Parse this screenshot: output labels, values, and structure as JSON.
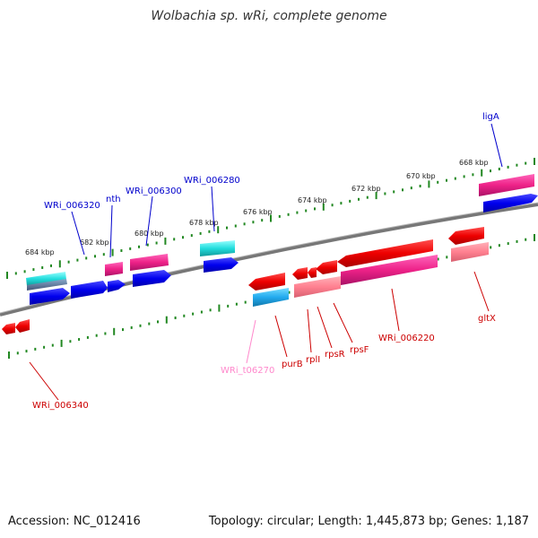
{
  "title": "Wolbachia sp. wRi, complete genome",
  "footer": {
    "accession": "Accession: NC_012416",
    "topology": "Topology: circular; Length: 1,445,873 bp; Genes: 1,187"
  },
  "scale_labels": [
    "668 kbp",
    "670 kbp",
    "672 kbp",
    "674 kbp",
    "676 kbp",
    "678 kbp",
    "680 kbp",
    "682 kbp",
    "684 kbp"
  ],
  "forward_labels": [
    "ligA",
    "WRi_006280",
    "WRi_006300",
    "nth",
    "WRi_006320"
  ],
  "reverse_labels": [
    "gltX",
    "WRi_006220",
    "rpsF",
    "rpsR",
    "rplI",
    "purB",
    "WRi_t06270",
    "WRi_006340"
  ],
  "colors": {
    "forward_gene": "#0000ee",
    "forward_cds_pink": "#ee2288",
    "reverse_gene": "#ee0000",
    "reverse_cds_pink": "#ff7a8a",
    "trna_cyan": "#22dddd",
    "tick_green": "#228822",
    "backbone": "#777777",
    "forward_label": "#0000cc",
    "reverse_label": "#cc0000",
    "trna_label": "#ff88cc"
  }
}
